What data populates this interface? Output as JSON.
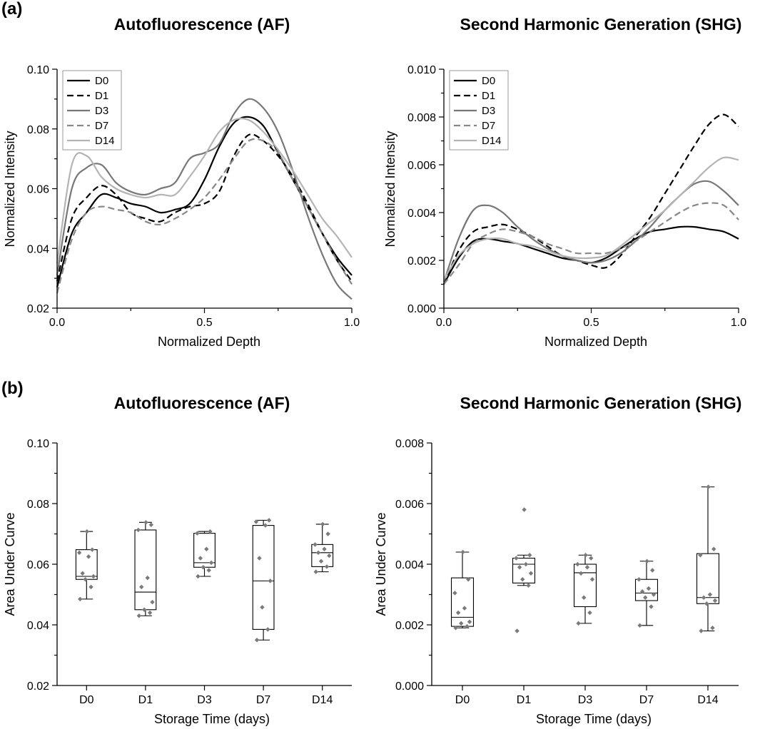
{
  "panel_labels": {
    "a": "(a)",
    "b": "(b)"
  },
  "chart_data": [
    {
      "id": "af_profile",
      "type": "line",
      "title": "Autofluorescence (AF)",
      "xlabel": "Normalized Depth",
      "ylabel": "Normalized Intensity",
      "xlim": [
        0,
        1
      ],
      "ylim": [
        0.02,
        0.1
      ],
      "xticks": [
        0.0,
        0.5,
        1.0
      ],
      "xtick_labels": [
        "0.0",
        "0.5",
        "1.0"
      ],
      "yticks": [
        0.02,
        0.04,
        0.06,
        0.08,
        0.1
      ],
      "ytick_labels": [
        "0.02",
        "0.04",
        "0.06",
        "0.08",
        "0.10"
      ],
      "legend_position": "top-left",
      "x": [
        0,
        0.05,
        0.1,
        0.15,
        0.2,
        0.25,
        0.3,
        0.35,
        0.4,
        0.45,
        0.5,
        0.55,
        0.6,
        0.65,
        0.7,
        0.75,
        0.8,
        0.85,
        0.9,
        0.95,
        1.0
      ],
      "series": [
        {
          "name": "D0",
          "color": "#000000",
          "dash": "solid",
          "values": [
            0.027,
            0.045,
            0.052,
            0.058,
            0.057,
            0.055,
            0.054,
            0.052,
            0.053,
            0.055,
            0.063,
            0.074,
            0.082,
            0.084,
            0.081,
            0.072,
            0.063,
            0.054,
            0.045,
            0.037,
            0.031
          ]
        },
        {
          "name": "D1",
          "color": "#000000",
          "dash": "dashed",
          "values": [
            0.029,
            0.05,
            0.057,
            0.061,
            0.058,
            0.052,
            0.05,
            0.049,
            0.052,
            0.054,
            0.055,
            0.059,
            0.071,
            0.078,
            0.076,
            0.071,
            0.064,
            0.055,
            0.045,
            0.036,
            0.029
          ]
        },
        {
          "name": "D3",
          "color": "#777777",
          "dash": "solid",
          "values": [
            0.031,
            0.06,
            0.067,
            0.068,
            0.062,
            0.059,
            0.058,
            0.06,
            0.062,
            0.07,
            0.072,
            0.075,
            0.085,
            0.09,
            0.087,
            0.079,
            0.066,
            0.051,
            0.038,
            0.028,
            0.023
          ]
        },
        {
          "name": "D7",
          "color": "#888888",
          "dash": "dashed",
          "values": [
            0.025,
            0.043,
            0.052,
            0.054,
            0.053,
            0.052,
            0.049,
            0.048,
            0.05,
            0.053,
            0.057,
            0.063,
            0.07,
            0.076,
            0.076,
            0.072,
            0.063,
            0.054,
            0.045,
            0.036,
            0.028
          ]
        },
        {
          "name": "D14",
          "color": "#b4b4b4",
          "dash": "solid",
          "values": [
            0.035,
            0.068,
            0.071,
            0.064,
            0.06,
            0.058,
            0.057,
            0.058,
            0.058,
            0.064,
            0.071,
            0.079,
            0.083,
            0.083,
            0.079,
            0.073,
            0.066,
            0.058,
            0.05,
            0.044,
            0.037
          ]
        }
      ]
    },
    {
      "id": "shg_profile",
      "type": "line",
      "title": "Second Harmonic Generation (SHG)",
      "xlabel": "Normalized Depth",
      "ylabel": "Normalized Intensity",
      "xlim": [
        0,
        1
      ],
      "ylim": [
        0,
        0.01
      ],
      "xticks": [
        0.0,
        0.5,
        1.0
      ],
      "xtick_labels": [
        "0.0",
        "0.5",
        "1.0"
      ],
      "yticks": [
        0,
        0.002,
        0.004,
        0.006,
        0.008,
        0.01
      ],
      "ytick_labels": [
        "0.000",
        "0.002",
        "0.004",
        "0.006",
        "0.008",
        "0.010"
      ],
      "legend_position": "top-left",
      "x": [
        0,
        0.05,
        0.1,
        0.15,
        0.2,
        0.25,
        0.3,
        0.35,
        0.4,
        0.45,
        0.5,
        0.55,
        0.6,
        0.65,
        0.7,
        0.75,
        0.8,
        0.85,
        0.9,
        0.95,
        1.0
      ],
      "series": [
        {
          "name": "D0",
          "color": "#000000",
          "dash": "solid",
          "values": [
            0.001,
            0.0021,
            0.0028,
            0.0029,
            0.0028,
            0.0027,
            0.0025,
            0.0023,
            0.0021,
            0.002,
            0.0019,
            0.0021,
            0.0025,
            0.0029,
            0.0032,
            0.0033,
            0.0034,
            0.0034,
            0.0033,
            0.0032,
            0.0029
          ]
        },
        {
          "name": "D1",
          "color": "#000000",
          "dash": "dashed",
          "values": [
            0.001,
            0.0024,
            0.0032,
            0.0034,
            0.0035,
            0.0033,
            0.003,
            0.0026,
            0.0022,
            0.002,
            0.0018,
            0.0017,
            0.0022,
            0.003,
            0.0038,
            0.0048,
            0.0058,
            0.0068,
            0.0077,
            0.0081,
            0.0076
          ]
        },
        {
          "name": "D3",
          "color": "#777777",
          "dash": "solid",
          "values": [
            0.0011,
            0.0029,
            0.0041,
            0.0043,
            0.004,
            0.0034,
            0.0029,
            0.0025,
            0.0022,
            0.002,
            0.0019,
            0.002,
            0.0023,
            0.0028,
            0.0034,
            0.0041,
            0.0047,
            0.0052,
            0.0053,
            0.0049,
            0.0043
          ]
        },
        {
          "name": "D7",
          "color": "#888888",
          "dash": "dashed",
          "values": [
            0.001,
            0.0018,
            0.0027,
            0.0031,
            0.0033,
            0.0032,
            0.003,
            0.0027,
            0.0025,
            0.0023,
            0.0023,
            0.0023,
            0.0025,
            0.0028,
            0.0032,
            0.0036,
            0.004,
            0.0043,
            0.0044,
            0.0043,
            0.0037
          ]
        },
        {
          "name": "D14",
          "color": "#b4b4b4",
          "dash": "solid",
          "values": [
            0.0012,
            0.0022,
            0.0027,
            0.0029,
            0.0029,
            0.0027,
            0.0026,
            0.0024,
            0.0022,
            0.0021,
            0.0021,
            0.0022,
            0.0026,
            0.0031,
            0.0036,
            0.0041,
            0.0047,
            0.0053,
            0.0059,
            0.0063,
            0.0062
          ]
        }
      ]
    },
    {
      "id": "af_auc",
      "type": "box",
      "title": "Autofluorescence (AF)",
      "xlabel": "Storage Time (days)",
      "ylabel": "Area Under Curve",
      "ylim": [
        0.02,
        0.1
      ],
      "yticks": [
        0.02,
        0.04,
        0.06,
        0.08,
        0.1
      ],
      "ytick_labels": [
        "0.02",
        "0.04",
        "0.06",
        "0.08",
        "0.10"
      ],
      "categories": [
        "D0",
        "D1",
        "D3",
        "D7",
        "D14"
      ],
      "boxes": [
        {
          "whisker_low": 0.0485,
          "q1": 0.055,
          "median": 0.056,
          "q3": 0.0648,
          "whisker_high": 0.0708,
          "points": [
            0.0485,
            0.0525,
            0.055,
            0.056,
            0.057,
            0.0625,
            0.0638,
            0.0648,
            0.0708
          ]
        },
        {
          "whisker_low": 0.043,
          "q1": 0.045,
          "median": 0.0508,
          "q3": 0.0713,
          "whisker_high": 0.0738,
          "points": [
            0.043,
            0.044,
            0.045,
            0.0475,
            0.0525,
            0.0555,
            0.0713,
            0.073,
            0.0738
          ]
        },
        {
          "whisker_low": 0.056,
          "q1": 0.059,
          "median": 0.0605,
          "q3": 0.0702,
          "whisker_high": 0.0708,
          "points": [
            0.056,
            0.058,
            0.059,
            0.0605,
            0.062,
            0.065,
            0.0702,
            0.0708
          ]
        },
        {
          "whisker_low": 0.035,
          "q1": 0.0385,
          "median": 0.0545,
          "q3": 0.0728,
          "whisker_high": 0.0745,
          "points": [
            0.035,
            0.0385,
            0.0458,
            0.0545,
            0.062,
            0.0728,
            0.074,
            0.0745
          ]
        },
        {
          "whisker_low": 0.0575,
          "q1": 0.0592,
          "median": 0.0638,
          "q3": 0.0665,
          "whisker_high": 0.0732,
          "points": [
            0.0575,
            0.0592,
            0.061,
            0.0628,
            0.0638,
            0.065,
            0.0665,
            0.07,
            0.0732
          ]
        }
      ]
    },
    {
      "id": "shg_auc",
      "type": "box",
      "title": "Second Harmonic Generation (SHG)",
      "xlabel": "Storage Time (days)",
      "ylabel": "Area Under Curve",
      "ylim": [
        0,
        0.008
      ],
      "yticks": [
        0,
        0.002,
        0.004,
        0.006,
        0.008
      ],
      "ytick_labels": [
        "0.000",
        "0.002",
        "0.004",
        "0.006",
        "0.008"
      ],
      "categories": [
        "D0",
        "D1",
        "D3",
        "D7",
        "D14"
      ],
      "boxes": [
        {
          "whisker_low": 0.0019,
          "q1": 0.00195,
          "median": 0.00225,
          "q3": 0.00355,
          "whisker_high": 0.0044,
          "points": [
            0.0019,
            0.00195,
            0.00205,
            0.0021,
            0.0024,
            0.00255,
            0.00305,
            0.0035,
            0.0044
          ]
        },
        {
          "whisker_low": 0.0033,
          "q1": 0.00338,
          "median": 0.004,
          "q3": 0.0042,
          "whisker_high": 0.0043,
          "points": [
            0.0018,
            0.0033,
            0.0035,
            0.0037,
            0.0039,
            0.004,
            0.0042,
            0.0043,
            0.0058
          ]
        },
        {
          "whisker_low": 0.00205,
          "q1": 0.0026,
          "median": 0.00372,
          "q3": 0.004,
          "whisker_high": 0.0043,
          "points": [
            0.00205,
            0.0024,
            0.0029,
            0.0035,
            0.0037,
            0.0039,
            0.004,
            0.0042,
            0.0043
          ]
        },
        {
          "whisker_low": 0.00198,
          "q1": 0.0028,
          "median": 0.00305,
          "q3": 0.0035,
          "whisker_high": 0.0041,
          "points": [
            0.00198,
            0.0026,
            0.0029,
            0.003,
            0.0031,
            0.0032,
            0.0035,
            0.0038,
            0.0041
          ]
        },
        {
          "whisker_low": 0.0018,
          "q1": 0.0027,
          "median": 0.0029,
          "q3": 0.00435,
          "whisker_high": 0.00655,
          "points": [
            0.0018,
            0.0019,
            0.0027,
            0.0028,
            0.0029,
            0.003,
            0.0043,
            0.0045,
            0.00655
          ]
        }
      ]
    }
  ]
}
